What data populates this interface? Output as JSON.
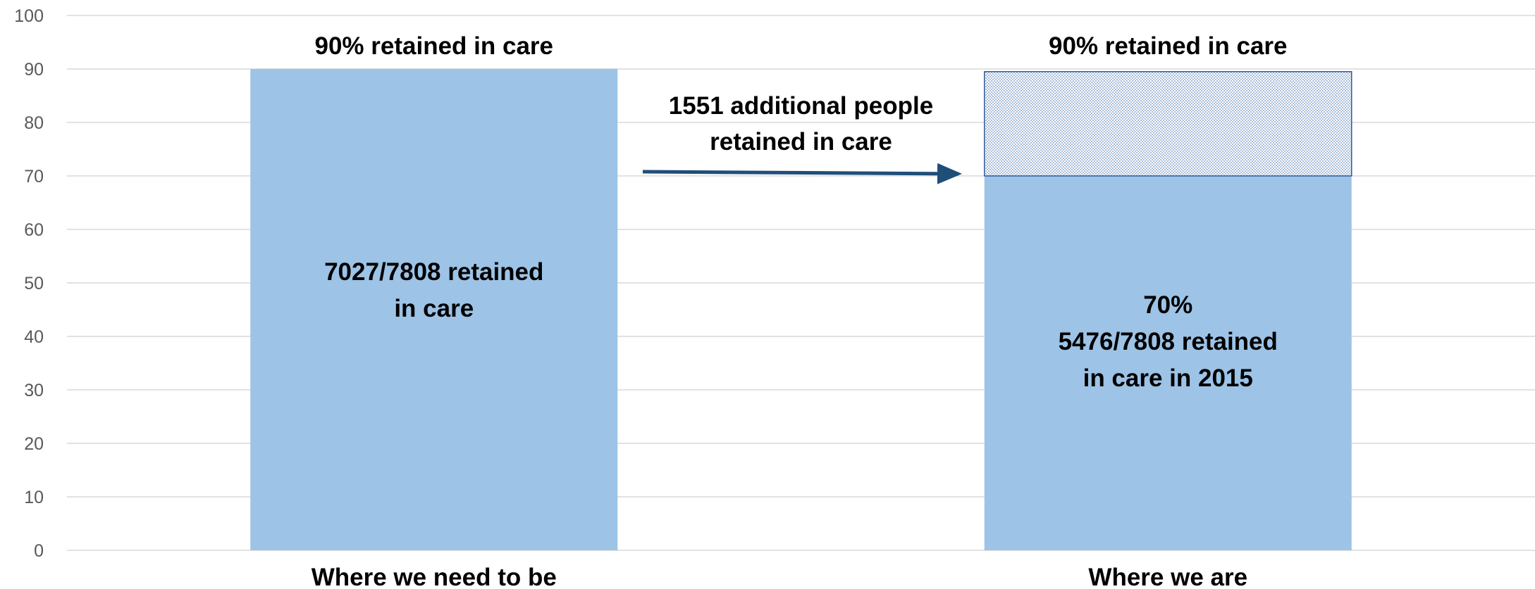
{
  "chart_data": {
    "type": "bar",
    "title": "",
    "xlabel": "",
    "ylabel": "",
    "ylim": [
      0,
      100
    ],
    "yticks": [
      0,
      10,
      20,
      30,
      40,
      50,
      60,
      70,
      80,
      90,
      100
    ],
    "grid": true,
    "legend": "none",
    "categories": [
      "Where we need to be",
      "Where we are"
    ],
    "series": [
      {
        "values": [
          90,
          70
        ]
      },
      {
        "values": [
          0,
          19.5
        ],
        "pattern": "dotted"
      }
    ],
    "annotations": {
      "top_left": "90% retained in care",
      "top_right": "90% retained in care",
      "bar1_lines": [
        "7027/7808 retained",
        "in care"
      ],
      "bar2_lines": [
        "70%",
        "5476/7808 retained",
        "in care in 2015"
      ],
      "arrow_lines": [
        "1551 additional people",
        "retained in care"
      ]
    },
    "colors": {
      "bar": "#9DC3E6",
      "pattern_border": "#2E5C9A",
      "arrow": "#1F4E79",
      "grid": "#D9D9D9"
    }
  }
}
